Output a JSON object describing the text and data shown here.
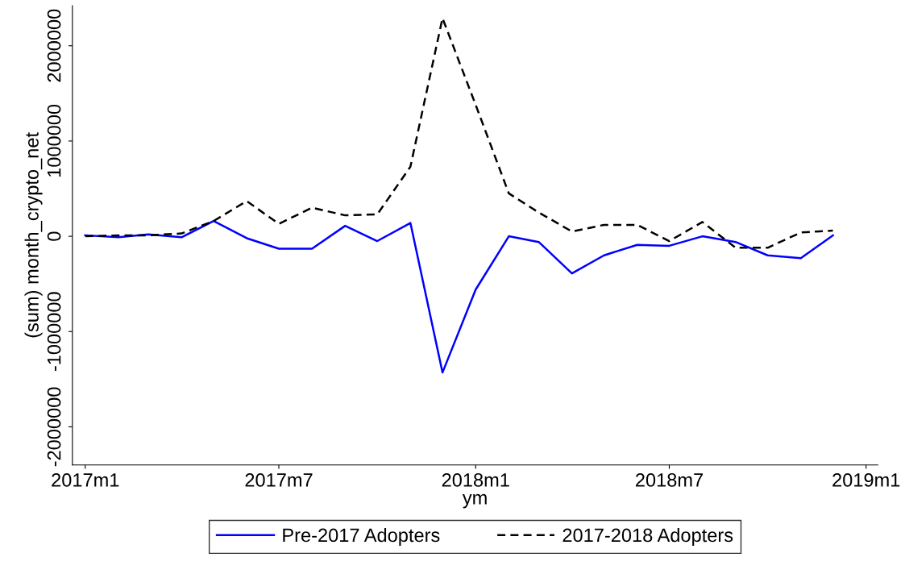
{
  "chart_data": {
    "type": "line",
    "xlabel": "ym",
    "ylabel": "(sum) month_crypto_net",
    "x": [
      "2017-01",
      "2017-02",
      "2017-03",
      "2017-04",
      "2017-05",
      "2017-06",
      "2017-07",
      "2017-08",
      "2017-09",
      "2017-10",
      "2017-11",
      "2017-12",
      "2018-01",
      "2018-02",
      "2018-03",
      "2018-04",
      "2018-05",
      "2018-06",
      "2018-07",
      "2018-08",
      "2018-09",
      "2018-10",
      "2018-11",
      "2018-12"
    ],
    "series": [
      {
        "name": "Pre-2017 Adopters",
        "color": "#0000ff",
        "line_style": "solid",
        "values": [
          10000,
          -10000,
          20000,
          -10000,
          160000,
          -20000,
          -130000,
          -130000,
          110000,
          -50000,
          140000,
          -1430000,
          -560000,
          0,
          -60000,
          -390000,
          -200000,
          -90000,
          -100000,
          0,
          -60000,
          -200000,
          -230000,
          10000
        ]
      },
      {
        "name": "2017-2018 Adopters",
        "color": "#000000",
        "line_style": "dashed",
        "values": [
          0,
          10000,
          10000,
          30000,
          160000,
          370000,
          130000,
          300000,
          220000,
          230000,
          730000,
          2290000,
          1380000,
          450000,
          250000,
          50000,
          120000,
          120000,
          -50000,
          150000,
          -120000,
          -120000,
          40000,
          60000
        ]
      }
    ],
    "xlim": [
      "2016-12-20",
      "2019-01-12"
    ],
    "xticks": [
      {
        "value": "2017-01",
        "label": "2017m1"
      },
      {
        "value": "2017-07",
        "label": "2017m7"
      },
      {
        "value": "2018-01",
        "label": "2018m1"
      },
      {
        "value": "2018-07",
        "label": "2018m7"
      },
      {
        "value": "2019-01",
        "label": "2019m1"
      }
    ],
    "ylim": [
      -2400000,
      2420000
    ],
    "yticks": [
      -2000000,
      -1000000,
      0,
      1000000,
      2000000
    ],
    "grid": false,
    "legend": "bottom"
  }
}
